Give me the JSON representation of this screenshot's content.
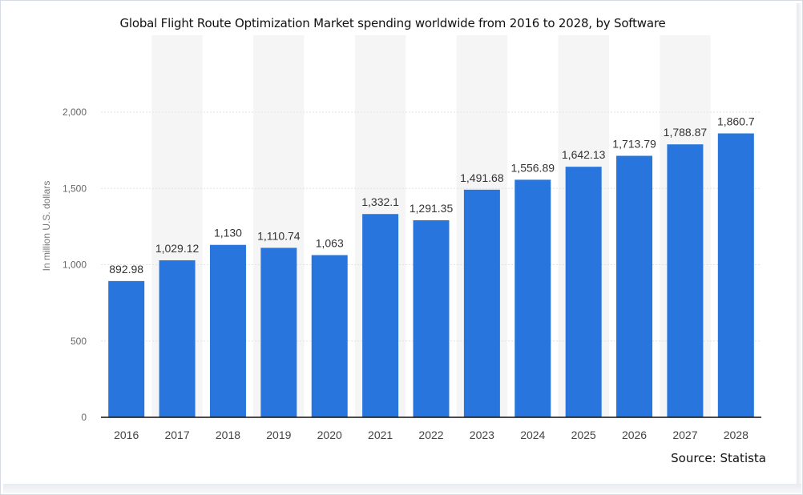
{
  "chart_data": {
    "type": "bar",
    "title": "Global Flight Route Optimization Market spending worldwide from 2016 to 2028, by Software",
    "ylabel": "In million U.S. dollars",
    "xlabel": "",
    "source": "Source: Statista",
    "categories": [
      "2016",
      "2017",
      "2018",
      "2019",
      "2020",
      "2021",
      "2022",
      "2023",
      "2024",
      "2025",
      "2026",
      "2027",
      "2028"
    ],
    "values": [
      892.98,
      1029.12,
      1130,
      1110.74,
      1063,
      1332.1,
      1291.35,
      1491.68,
      1556.89,
      1642.13,
      1713.79,
      1788.87,
      1860.7
    ],
    "value_labels": [
      "892.98",
      "1,029.12",
      "1,130",
      "1,110.74",
      "1,063",
      "1,332.1",
      "1,291.35",
      "1,491.68",
      "1,556.89",
      "1,642.13",
      "1,713.79",
      "1,788.87",
      "1,860.7"
    ],
    "yticks": [
      0,
      500,
      1000,
      1500,
      2000
    ],
    "ytick_labels": [
      "0",
      "500",
      "1,000",
      "1,500",
      "2,000"
    ],
    "ylim": [
      0,
      2000
    ],
    "grid": true,
    "bar_color": "#2876dd",
    "stripe_color": "#f5f5f5"
  }
}
